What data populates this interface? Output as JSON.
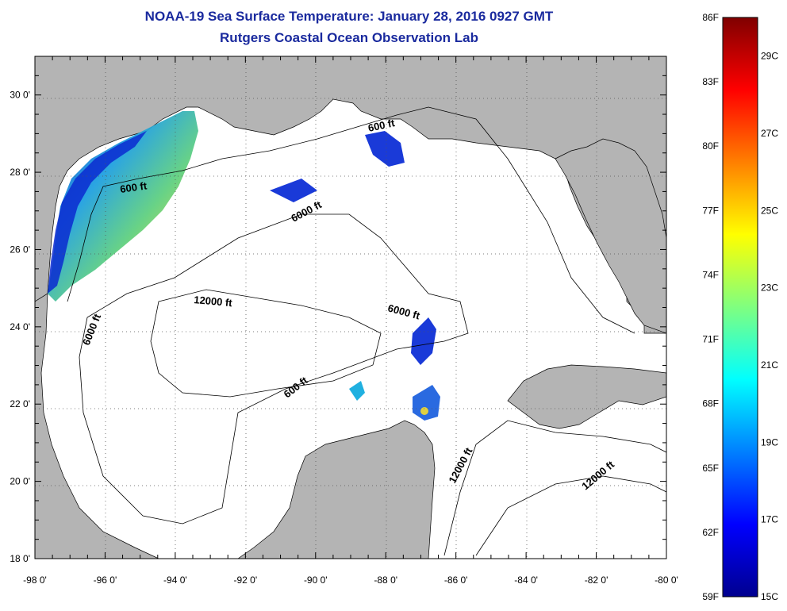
{
  "header": {
    "title": "NOAA-19 Sea Surface Temperature:  January 28, 2016 0927 GMT",
    "subtitle": "Rutgers Coastal Ocean Observation Lab"
  },
  "map": {
    "lon_range": [
      -98,
      -80
    ],
    "lat_range": [
      18,
      31
    ],
    "lon_ticks": [
      "-98 0'",
      "-96 0'",
      "-94 0'",
      "-92 0'",
      "-90 0'",
      "-88 0'",
      "-86 0'",
      "-84 0'",
      "-82 0'",
      "-80 0'"
    ],
    "lat_ticks": [
      "18 0'",
      "20 0'",
      "22 0'",
      "24 0'",
      "26 0'",
      "28 0'",
      "30 0'"
    ],
    "contour_labels": [
      {
        "text": "600 ft"
      },
      {
        "text": "600 ft"
      },
      {
        "text": "600 ft"
      },
      {
        "text": "6000 ft"
      },
      {
        "text": "6000 ft"
      },
      {
        "text": "6000 ft"
      },
      {
        "text": "12000 ft"
      },
      {
        "text": "12000 ft"
      },
      {
        "text": "12000 ft"
      }
    ],
    "colors": {
      "land": "#b4b4b4",
      "water": "#ffffff",
      "grid": "#666666"
    }
  },
  "colorbar": {
    "fahrenheit_labels": [
      "86F",
      "83F",
      "80F",
      "77F",
      "74F",
      "71F",
      "68F",
      "65F",
      "62F",
      "59F"
    ],
    "celsius_labels": [
      "29C",
      "27C",
      "25C",
      "23C",
      "21C",
      "19C",
      "17C",
      "15C"
    ],
    "colormap": "jet",
    "range_f": [
      59,
      86
    ]
  }
}
